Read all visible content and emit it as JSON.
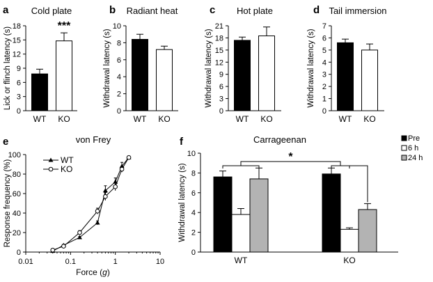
{
  "chart_data": [
    {
      "id": "a",
      "type": "bar",
      "panel_letter": "a",
      "title": "Cold plate",
      "ylabel": "Lick or flinch latency (s)",
      "xlabel": "",
      "categories": [
        "WT",
        "KO"
      ],
      "values": [
        7.8,
        14.8
      ],
      "errors": [
        1.0,
        1.7
      ],
      "fills": [
        "#000000",
        "#ffffff"
      ],
      "ylim": [
        0,
        18
      ],
      "yticks": [
        0,
        3,
        6,
        9,
        12,
        15,
        18
      ],
      "annotations": [
        {
          "category": "KO",
          "text": "***"
        }
      ]
    },
    {
      "id": "b",
      "type": "bar",
      "panel_letter": "b",
      "title": "Radiant heat",
      "ylabel": "Withdrawal latency (s)",
      "xlabel": "",
      "categories": [
        "WT",
        "KO"
      ],
      "values": [
        8.4,
        7.2
      ],
      "errors": [
        0.6,
        0.4
      ],
      "fills": [
        "#000000",
        "#ffffff"
      ],
      "ylim": [
        0,
        10
      ],
      "yticks": [
        0,
        2,
        4,
        6,
        8,
        10
      ]
    },
    {
      "id": "c",
      "type": "bar",
      "panel_letter": "c",
      "title": "Hot plate",
      "ylabel": "Withdrawal latency (s)",
      "xlabel": "",
      "categories": [
        "WT",
        "KO"
      ],
      "values": [
        17.4,
        18.5
      ],
      "errors": [
        0.8,
        2.2
      ],
      "fills": [
        "#000000",
        "#ffffff"
      ],
      "ylim": [
        0,
        21
      ],
      "yticks": [
        0,
        3,
        6,
        9,
        12,
        15,
        18,
        21
      ]
    },
    {
      "id": "d",
      "type": "bar",
      "panel_letter": "d",
      "title": "Tail immersion",
      "ylabel": "Withdrawal latency (s)",
      "xlabel": "",
      "categories": [
        "WT",
        "KO"
      ],
      "values": [
        5.6,
        5.0
      ],
      "errors": [
        0.3,
        0.5
      ],
      "fills": [
        "#000000",
        "#ffffff"
      ],
      "ylim": [
        0,
        7
      ],
      "yticks": [
        0,
        1,
        2,
        3,
        4,
        5,
        6,
        7
      ]
    },
    {
      "id": "e",
      "type": "line",
      "panel_letter": "e",
      "title": "von Frey",
      "xlabel": "Force (g)",
      "ylabel": "Response frequency (%)",
      "xscale": "log",
      "xlim": [
        0.01,
        10
      ],
      "xticks": [
        0.01,
        0.1,
        1,
        10
      ],
      "xticklabels": [
        "0.01",
        "0.1",
        "1",
        "10"
      ],
      "ylim": [
        0,
        100
      ],
      "yticks": [
        0,
        20,
        40,
        60,
        80,
        100
      ],
      "legend": "top-left",
      "series": [
        {
          "name": "WT",
          "marker": "triangle",
          "x": [
            0.04,
            0.07,
            0.16,
            0.4,
            0.6,
            1.0,
            1.4,
            2.0
          ],
          "y": [
            1,
            7,
            15,
            30,
            63,
            72,
            88,
            97
          ],
          "errors": [
            0,
            1,
            1,
            2,
            5,
            4,
            4,
            1
          ]
        },
        {
          "name": "KO",
          "marker": "circle-open",
          "x": [
            0.04,
            0.07,
            0.16,
            0.4,
            0.6,
            1.0,
            1.4,
            2.0
          ],
          "y": [
            2,
            6,
            20,
            42,
            57,
            67,
            85,
            97
          ],
          "errors": [
            0,
            1,
            2,
            3,
            4,
            4,
            3,
            1
          ]
        }
      ]
    },
    {
      "id": "f",
      "type": "bar",
      "panel_letter": "f",
      "title": "Carrageenan",
      "ylabel": "Withdrawal latency (s)",
      "xlabel": "",
      "categories": [
        "WT",
        "KO"
      ],
      "ylim": [
        0,
        10
      ],
      "yticks": [
        0,
        2,
        4,
        6,
        8,
        10
      ],
      "legend": "top-right",
      "series": [
        {
          "name": "Pre",
          "color": "#000000",
          "values": [
            7.6,
            7.9
          ],
          "errors": [
            0.6,
            0.6
          ]
        },
        {
          "name": "6 h",
          "color": "#ffffff",
          "values": [
            3.8,
            2.3
          ],
          "errors": [
            0.6,
            0.15
          ]
        },
        {
          "name": "24 h",
          "color": "#b3b3b3",
          "values": [
            7.4,
            4.3
          ],
          "errors": [
            1.1,
            0.6
          ]
        }
      ],
      "annotations": [
        {
          "text": "*"
        }
      ]
    }
  ]
}
